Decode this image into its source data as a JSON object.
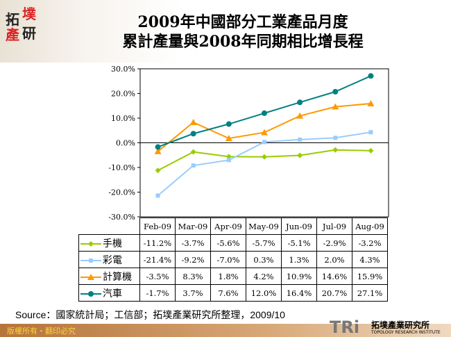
{
  "logo": {
    "chars": [
      "拓",
      "墣",
      "產",
      "研"
    ]
  },
  "title": {
    "line1": "2009年中國部分工業產品月度",
    "line2": "累計產量與2008年同期相比增長程"
  },
  "chart_data": {
    "type": "line",
    "categories": [
      "Feb-09",
      "Mar-09",
      "Apr-09",
      "May-09",
      "Jun-09",
      "Jul-09",
      "Aug-09"
    ],
    "ylim": [
      -30,
      30
    ],
    "yticks": [
      "30.0%",
      "20.0%",
      "10.0%",
      "0.0%",
      "-10.0%",
      "-20.0%",
      "-30.0%"
    ],
    "grid": false,
    "legend": "data table, left",
    "series": [
      {
        "name": "手機",
        "color": "#99cc00",
        "marker": "diamond",
        "values": [
          -11.2,
          -3.7,
          -5.6,
          -5.7,
          -5.1,
          -2.9,
          -3.2
        ],
        "labels": [
          "-11.2%",
          "-3.7%",
          "-5.6%",
          "-5.7%",
          "-5.1%",
          "-2.9%",
          "-3.2%"
        ]
      },
      {
        "name": "彩電",
        "color": "#99ccff",
        "marker": "square",
        "values": [
          -21.4,
          -9.2,
          -7.0,
          0.3,
          1.3,
          2.0,
          4.3
        ],
        "labels": [
          "-21.4%",
          "-9.2%",
          "-7.0%",
          "0.3%",
          "1.3%",
          "2.0%",
          "4.3%"
        ]
      },
      {
        "name": "計算機",
        "color": "#ff9900",
        "marker": "triangle",
        "values": [
          -3.5,
          8.3,
          1.8,
          4.2,
          10.9,
          14.6,
          15.9
        ],
        "labels": [
          "-3.5%",
          "8.3%",
          "1.8%",
          "4.2%",
          "10.9%",
          "14.6%",
          "15.9%"
        ]
      },
      {
        "name": "汽車",
        "color": "#008080",
        "marker": "circle",
        "values": [
          -1.7,
          3.7,
          7.6,
          12.0,
          16.4,
          20.7,
          27.1
        ],
        "labels": [
          "-1.7%",
          "3.7%",
          "7.6%",
          "12.0%",
          "16.4%",
          "20.7%",
          "27.1%"
        ]
      }
    ]
  },
  "source": "Source：國家統計局；工信部；拓墣產業研究所整理，2009/10",
  "footer": {
    "copyright": "版權所有・翻印必究",
    "brand": "TRi",
    "brand_cn": "拓墣產業研究所",
    "brand_en": "TOPOLOGY RESEARCH INSTITUTE"
  }
}
